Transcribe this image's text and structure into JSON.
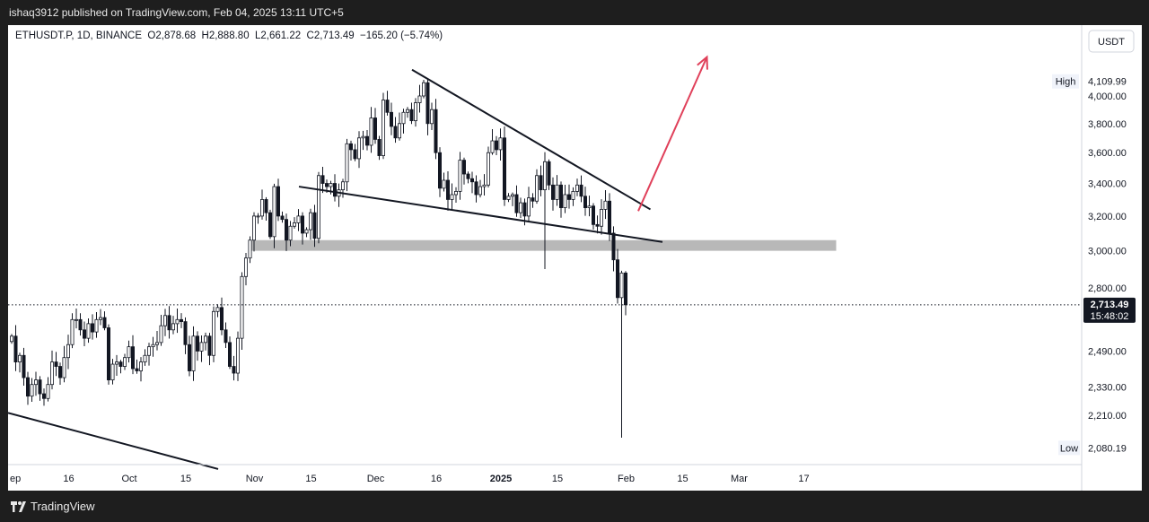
{
  "header": {
    "publisher_line": "ishaq3912 published on TradingView.com, Feb 04, 2025 13:11 UTC+5"
  },
  "footer": {
    "brand": "TradingView"
  },
  "legend": {
    "symbol": "ETHUSDT.P, 1D, BINANCE",
    "open": "O2,878.68",
    "high": "H2,888.80",
    "low": "L2,661.22",
    "close": "C2,713.49",
    "change": "−165.20 (−5.74%)"
  },
  "price_axis": {
    "currency": "USDT",
    "high_label": "High",
    "high_value": "4,109.99",
    "low_label": "Low",
    "low_value": "2,080.19",
    "last_price": "2,713.49",
    "countdown": "15:48:02",
    "ticks": [
      "4,000.00",
      "3,800.00",
      "3,600.00",
      "3,400.00",
      "3,200.00",
      "3,000.00",
      "2,800.00",
      "2,490.00",
      "2,330.00",
      "2,210.00"
    ]
  },
  "time_axis": {
    "ticks": [
      "ep",
      "16",
      "Oct",
      "15",
      "Nov",
      "15",
      "Dec",
      "16",
      "2025",
      "15",
      "Feb",
      "15",
      "Mar",
      "17"
    ]
  },
  "colors": {
    "background": "#ffffff",
    "candle": "#131722",
    "trendline": "#131722",
    "support_zone": "#b8b8b8",
    "arrow": "#e0405a",
    "price_line": "#131722"
  },
  "chart_data": {
    "type": "candlestick",
    "symbol": "ETHUSDT.P",
    "interval": "1D",
    "exchange": "BINANCE",
    "ohlc_last": {
      "open": 2878.68,
      "high": 2888.8,
      "low": 2661.22,
      "close": 2713.49,
      "change": -165.2,
      "change_pct": -5.74
    },
    "y_scale": "log",
    "ylim": [
      2000,
      4500
    ],
    "xlim": [
      "2024-09-01",
      "2025-03-25"
    ],
    "closes": [
      2560,
      2440,
      2470,
      2370,
      2290,
      2340,
      2360,
      2300,
      2280,
      2340,
      2440,
      2420,
      2370,
      2460,
      2520,
      2640,
      2640,
      2590,
      2550,
      2620,
      2580,
      2640,
      2650,
      2600,
      2360,
      2430,
      2440,
      2420,
      2460,
      2510,
      2410,
      2400,
      2440,
      2470,
      2510,
      2520,
      2530,
      2610,
      2660,
      2590,
      2620,
      2640,
      2630,
      2520,
      2400,
      2560,
      2490,
      2530,
      2560,
      2470,
      2680,
      2700,
      2590,
      2530,
      2420,
      2390,
      2550,
      2860,
      2960,
      3060,
      3200,
      3200,
      3300,
      3220,
      3080,
      3380,
      3200,
      3180,
      3060,
      3140,
      3160,
      3200,
      3100,
      3120,
      3220,
      3070,
      3450,
      3400,
      3380,
      3400,
      3320,
      3360,
      3410,
      3660,
      3620,
      3560,
      3700,
      3710,
      3650,
      3840,
      3690,
      3580,
      3970,
      3880,
      3780,
      3700,
      3800,
      3880,
      3900,
      3820,
      3950,
      4000,
      4100,
      3800,
      3900,
      3600,
      3370,
      3420,
      3300,
      3330,
      3350,
      3550,
      3460,
      3430,
      3410,
      3330,
      3380,
      3390,
      3600,
      3680,
      3620,
      3700,
      3300,
      3320,
      3330,
      3220,
      3280,
      3200,
      3310,
      3290,
      3450,
      3360,
      3540,
      3390,
      3300,
      3390,
      3250,
      3330,
      3300,
      3350,
      3390,
      3320,
      3250,
      3260,
      3150,
      3140,
      3240,
      3290,
      3100,
      2950,
      2750,
      2878.68,
      2713.49
    ],
    "trendlines": [
      {
        "from": [
          "2024-12-10",
          4200
        ],
        "to": [
          "2025-02-07",
          3240
        ]
      },
      {
        "from": [
          "2024-11-12",
          3380
        ],
        "to": [
          "2025-02-10",
          3050
        ]
      },
      {
        "from": [
          "2024-09-01",
          2220
        ],
        "to": [
          "2024-10-23",
          2000
        ]
      }
    ],
    "zones": [
      {
        "from": "2024-10-31",
        "to": "2025-03-25",
        "low": 3000,
        "high": 3060
      }
    ],
    "arrow": {
      "from": [
        "2025-02-04",
        3230
      ],
      "to": [
        "2025-02-21",
        4300
      ]
    },
    "last_price_line": 2713.49
  }
}
